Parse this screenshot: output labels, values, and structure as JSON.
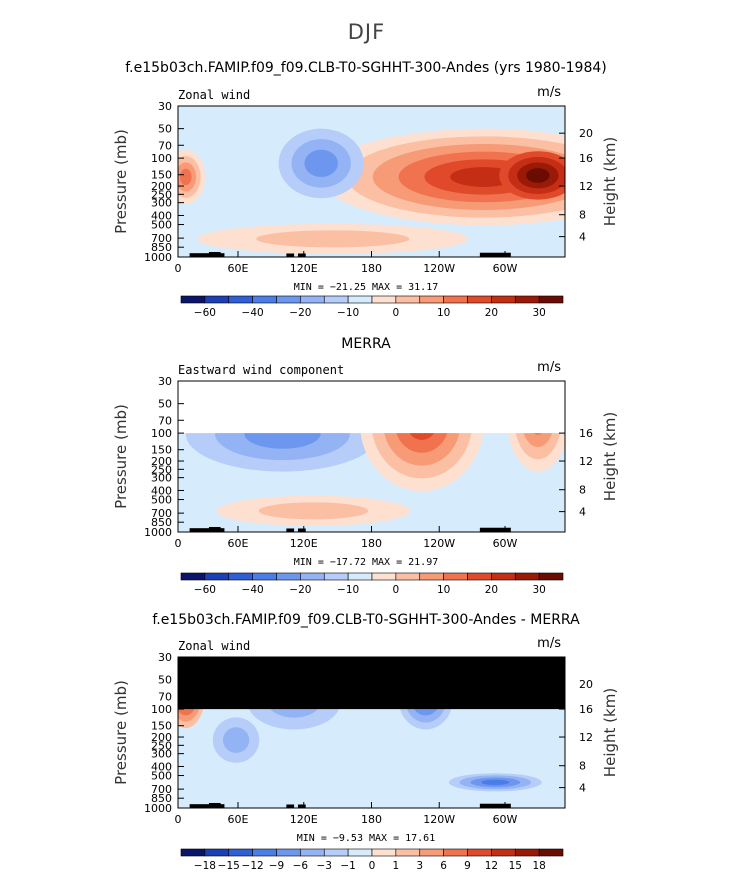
{
  "figure": {
    "title": "DJF",
    "colors": {
      "panel_bg": "#d6ebfb",
      "black": "#000000"
    }
  },
  "chart_data": [
    {
      "type": "heatmap",
      "title": "f.e15b03ch.FAMIP.f09_f09.CLB-T0-SGHHT-300-Andes (yrs 1980-1984)",
      "subtitle_left": "Zonal wind",
      "subtitle_right": "m/s",
      "ylabel": "Pressure (mb)",
      "y2label": "Height (km)",
      "x_ticks": [
        "0",
        "60E",
        "120E",
        "180",
        "120W",
        "60W"
      ],
      "y_ticks": [
        "30",
        "50",
        "70",
        "100",
        "150",
        "200",
        "250",
        "300",
        "400",
        "500",
        "700",
        "850",
        "1000"
      ],
      "y2_ticks": [
        "20",
        "16",
        "12",
        "8",
        "4"
      ],
      "stats": "MIN = −21.25   MAX =   31.17",
      "min": -21.25,
      "max": 31.17,
      "colorbar_labels": [
        "−60",
        "−40",
        "−20",
        "−10",
        "0",
        "10",
        "20",
        "30"
      ],
      "colorbar_colors": [
        "#0a1468",
        "#1d3fb5",
        "#2f5fd6",
        "#4b7de8",
        "#6d97ef",
        "#93b3f4",
        "#b5cdf8",
        "#d6ebfb",
        "#fde0d0",
        "#fbbfa3",
        "#f79a76",
        "#f1724f",
        "#e04a2b",
        "#c42e14",
        "#9a1a08",
        "#6a0c02"
      ]
    },
    {
      "type": "heatmap",
      "title": "MERRA",
      "subtitle_left": "Eastward wind component",
      "subtitle_right": "m/s",
      "ylabel": "Pressure (mb)",
      "y2label": "Height (km)",
      "x_ticks": [
        "0",
        "60E",
        "120E",
        "180",
        "120W",
        "60W"
      ],
      "y_ticks": [
        "30",
        "50",
        "70",
        "100",
        "150",
        "200",
        "250",
        "300",
        "400",
        "500",
        "700",
        "850",
        "1000"
      ],
      "y2_ticks": [
        "16",
        "12",
        "8",
        "4"
      ],
      "stats": "MIN = −17.72   MAX =   21.97",
      "min": -17.72,
      "max": 21.97,
      "colorbar_labels": [
        "−60",
        "−40",
        "−20",
        "−10",
        "0",
        "10",
        "20",
        "30"
      ],
      "colorbar_colors": [
        "#0a1468",
        "#1d3fb5",
        "#2f5fd6",
        "#4b7de8",
        "#6d97ef",
        "#93b3f4",
        "#b5cdf8",
        "#d6ebfb",
        "#fde0d0",
        "#fbbfa3",
        "#f79a76",
        "#f1724f",
        "#e04a2b",
        "#c42e14",
        "#9a1a08",
        "#6a0c02"
      ]
    },
    {
      "type": "heatmap",
      "title": "f.e15b03ch.FAMIP.f09_f09.CLB-T0-SGHHT-300-Andes - MERRA",
      "subtitle_left": "Zonal wind",
      "subtitle_right": "m/s",
      "ylabel": "Pressure (mb)",
      "y2label": "Height (km)",
      "x_ticks": [
        "0",
        "60E",
        "120E",
        "180",
        "120W",
        "60W"
      ],
      "y_ticks": [
        "30",
        "50",
        "70",
        "100",
        "150",
        "200",
        "250",
        "300",
        "400",
        "500",
        "700",
        "850",
        "1000"
      ],
      "y2_ticks": [
        "20",
        "16",
        "12",
        "8",
        "4"
      ],
      "stats": "MIN =   −9.53   MAX =   17.61",
      "min": -9.53,
      "max": 17.61,
      "colorbar_labels": [
        "−18",
        "−15",
        "−12",
        "−9",
        "−6",
        "−3",
        "−1",
        "0",
        "1",
        "3",
        "6",
        "9",
        "12",
        "15",
        "18"
      ],
      "colorbar_colors": [
        "#0a1468",
        "#1d3fb5",
        "#2f5fd6",
        "#4b7de8",
        "#6d97ef",
        "#93b3f4",
        "#b5cdf8",
        "#d6ebfb",
        "#fde0d0",
        "#fbbfa3",
        "#f79a76",
        "#f1724f",
        "#e04a2b",
        "#c42e14",
        "#9a1a08",
        "#6a0c02"
      ]
    }
  ]
}
